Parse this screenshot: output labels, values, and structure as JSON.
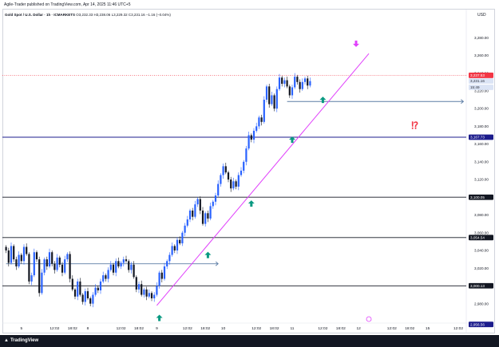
{
  "header": {
    "published": "Agile-Trader published on TradingView.com, Apr 14, 2025 11:46 UTC+5"
  },
  "legend": {
    "symbol": "Gold Spot / U.S. Dollar · 1h · ICMARKETS",
    "ohlc": "O3,232.33  H3,238.06  L3,229.32  C3,231.16  −1.16 (−0.04%)"
  },
  "axis": {
    "currency": "USD"
  },
  "footer": {
    "brand": "TradingView"
  },
  "colors": {
    "up": "#2962ff",
    "down": "#131722",
    "trendline": "#e040fb",
    "hline": "#131722",
    "blueline": "#2962ff",
    "ray": "#5d7ea6",
    "signal_up": "#089981",
    "signal_down": "#e040fb",
    "alert": "#f23645",
    "last_price": "#f23645"
  },
  "chart_data": {
    "type": "candlestick",
    "interval": "1h",
    "ylim": [
      2950,
      3300
    ],
    "y_ticks": [
      2980,
      3000,
      3020,
      3040,
      3060,
      3080,
      3100,
      3120,
      3140,
      3160,
      3180,
      3200,
      3220,
      3240,
      3260,
      3280
    ],
    "y_tick_labels": [
      "2,980.00",
      "3,000.00",
      "3,020.00",
      "3,040.00",
      "3,060.00",
      "3,080.00",
      "3,100.00",
      "3,120.00",
      "3,140.00",
      "3,160.00",
      "3,180.00",
      "3,200.00",
      "3,220.00",
      "3,240.00",
      "3,260.00",
      "3,280.00"
    ],
    "x_labels": [
      {
        "label": "5",
        "bar": 6
      },
      {
        "label": "12:02",
        "bar": 19
      },
      {
        "label": "18:02",
        "bar": 26
      },
      {
        "label": "8",
        "bar": 32
      },
      {
        "label": "12:02",
        "bar": 45
      },
      {
        "label": "18:02",
        "bar": 52
      },
      {
        "label": "9",
        "bar": 59
      },
      {
        "label": "12:02",
        "bar": 71
      },
      {
        "label": "18:02",
        "bar": 78
      },
      {
        "label": "10",
        "bar": 85
      },
      {
        "label": "12:02",
        "bar": 98
      },
      {
        "label": "18:02",
        "bar": 105
      },
      {
        "label": "11",
        "bar": 112
      },
      {
        "label": "12:02",
        "bar": 124
      },
      {
        "label": "18:02",
        "bar": 131
      },
      {
        "label": "12",
        "bar": 138
      },
      {
        "label": "12:02",
        "bar": 151
      },
      {
        "label": "18:02",
        "bar": 158
      },
      {
        "label": "15",
        "bar": 165
      },
      {
        "label": "12:02",
        "bar": 177
      }
    ],
    "close": [
      3040,
      3026,
      3045,
      3030,
      3022,
      3035,
      3028,
      3044,
      3036,
      3005,
      3012,
      3038,
      3030,
      2992,
      3015,
      3030,
      3022,
      3038,
      3025,
      3018,
      3032,
      3024,
      3015,
      3030,
      3036,
      3008,
      2996,
      2988,
      3005,
      2990,
      2982,
      2994,
      2986,
      2980,
      2990,
      2998,
      2995,
      3005,
      3012,
      3008,
      3018,
      3024,
      3015,
      3028,
      3022,
      3026,
      3030,
      3028,
      3018,
      3024,
      3010,
      2996,
      3002,
      2990,
      2996,
      2988,
      2992,
      2986,
      2990,
      3000,
      3015,
      3008,
      3022,
      3028,
      3035,
      3045,
      3040,
      3052,
      3048,
      3060,
      3068,
      3075,
      3085,
      3078,
      3092,
      3098,
      3085,
      3070,
      3082,
      3076,
      3090,
      3095,
      3102,
      3115,
      3125,
      3135,
      3128,
      3120,
      3110,
      3118,
      3112,
      3125,
      3130,
      3140,
      3155,
      3170,
      3165,
      3175,
      3180,
      3190,
      3185,
      3210,
      3225,
      3205,
      3215,
      3200,
      3222,
      3235,
      3228,
      3232,
      3225,
      3215,
      3224,
      3236,
      3230,
      3222,
      3230,
      3234,
      3226,
      3231
    ],
    "levels": [
      {
        "label": "3,167.73",
        "value": 3167.73,
        "style": "blue"
      },
      {
        "label": "3,100.05",
        "value": 3100.05,
        "style": "black"
      },
      {
        "label": "3,054.54",
        "value": 3054.54,
        "style": "black"
      },
      {
        "label": "3,000.13",
        "value": 3000.13,
        "style": "black"
      }
    ],
    "axis_tags": [
      {
        "label": "3,237.53",
        "value": 3237.53,
        "style": "last"
      },
      {
        "label": "3,231.16",
        "value": 3231.16,
        "style": "price"
      },
      {
        "label": "15:49",
        "value": 3224,
        "style": "time"
      },
      {
        "label": "2,956.56",
        "value": 2956.56,
        "style": "low"
      }
    ],
    "trendline": {
      "from": {
        "bar": 59,
        "value": 2978
      },
      "to": {
        "bar": 142,
        "value": 3262
      }
    },
    "rays": [
      {
        "from": {
          "bar": 0,
          "value": 3025
        },
        "to": {
          "bar": 83,
          "value": 3025
        }
      },
      {
        "from": {
          "bar": 110,
          "value": 3208
        },
        "to": {
          "bar": 179,
          "value": 3208
        }
      }
    ],
    "signals_up": [
      {
        "bar": 60,
        "value": 2963
      },
      {
        "bar": 79,
        "value": 3034
      },
      {
        "bar": 96,
        "value": 3092
      },
      {
        "bar": 112,
        "value": 3164
      },
      {
        "bar": 124,
        "value": 3209
      }
    ],
    "signals_down": [
      {
        "bar": 137,
        "value": 3274
      }
    ],
    "annotations": [
      {
        "text": "⁉",
        "bar": 160,
        "value": 3180
      }
    ]
  }
}
